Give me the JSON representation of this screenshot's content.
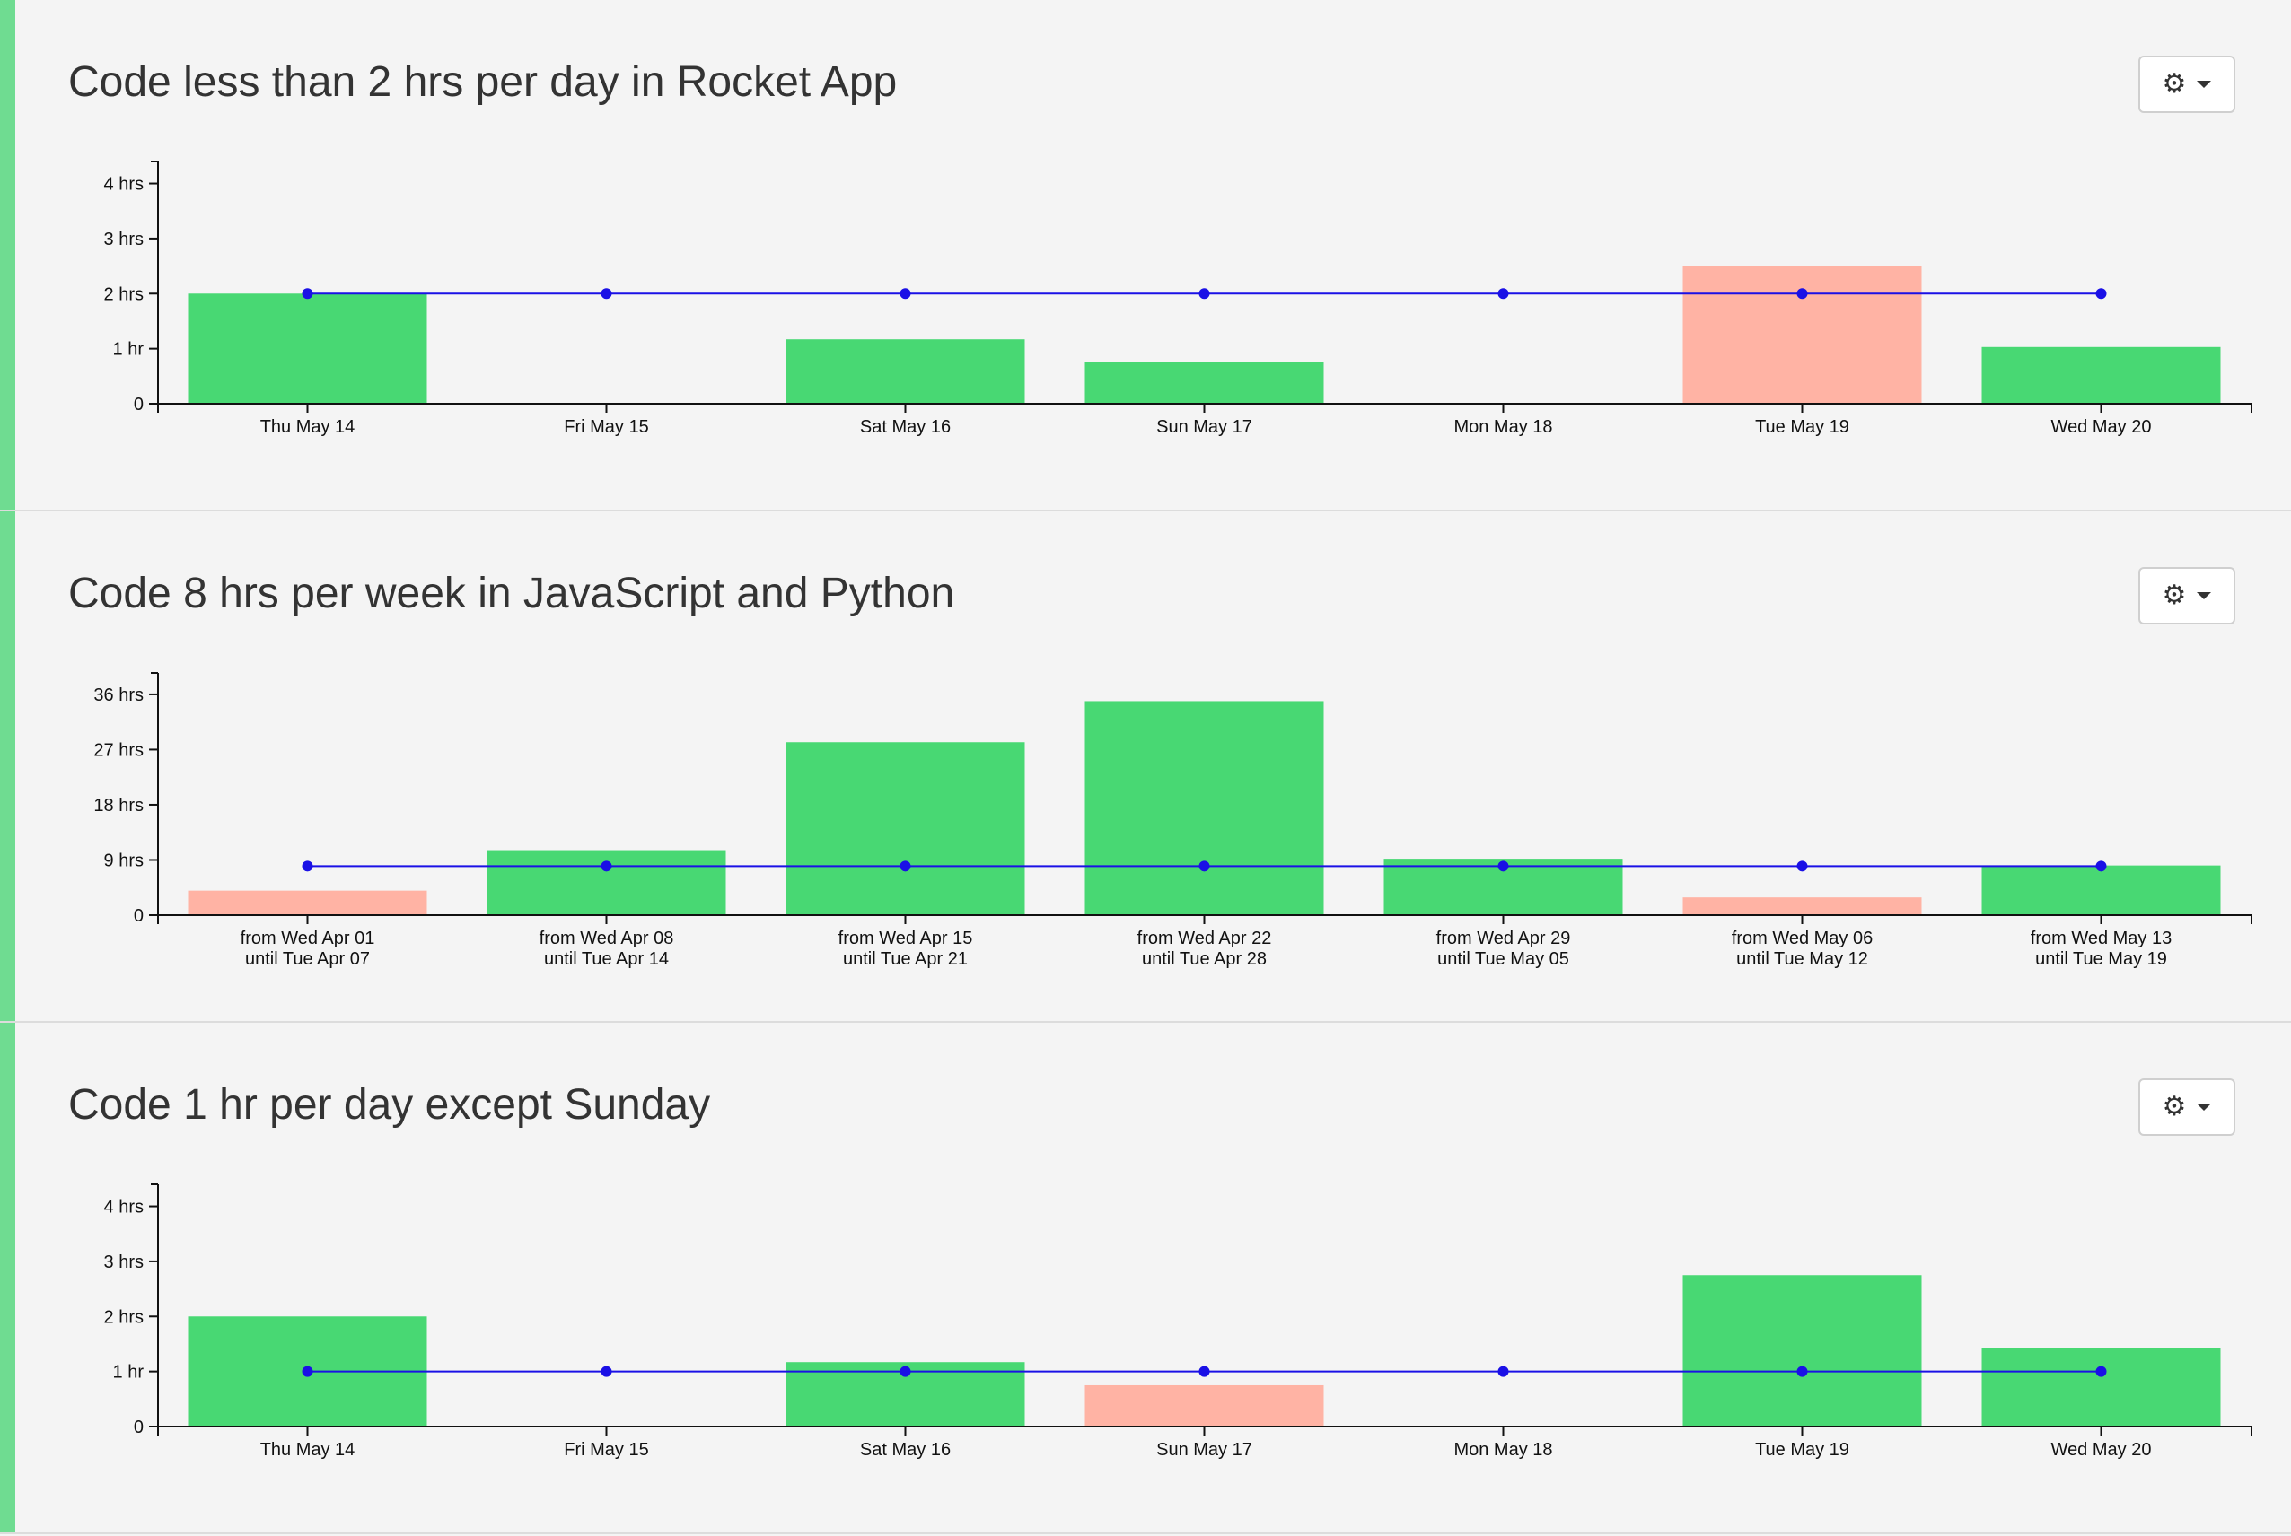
{
  "colors": {
    "met": "#48d873",
    "missed": "#ffb3a4",
    "goal_line": "#1a10e6",
    "accent": "#6fdc91"
  },
  "panels": [
    {
      "title": "Code less than 2 hrs per day in Rocket App",
      "settings_icon": "gear-icon",
      "chart_data": {
        "type": "bar",
        "categories": [
          [
            "Thu May 14"
          ],
          [
            "Fri May 15"
          ],
          [
            "Sat May 16"
          ],
          [
            "Sun May 17"
          ],
          [
            "Mon May 18"
          ],
          [
            "Tue May 19"
          ],
          [
            "Wed May 20"
          ]
        ],
        "values": [
          2.0,
          0,
          1.17,
          0.75,
          0,
          2.5,
          1.03
        ],
        "status": [
          "met",
          "met",
          "met",
          "met",
          "met",
          "missed",
          "met"
        ],
        "goal": 2,
        "ylim": [
          0,
          4.4
        ],
        "yticks": [
          0,
          1,
          2,
          3,
          4
        ],
        "ytick_labels": [
          "0",
          "1 hr",
          "2 hrs",
          "3 hrs",
          "4 hrs"
        ]
      }
    },
    {
      "title": "Code 8 hrs per week in JavaScript and Python",
      "settings_icon": "gear-icon",
      "chart_data": {
        "type": "bar",
        "categories": [
          [
            "from Wed Apr 01",
            "until Tue Apr 07"
          ],
          [
            "from Wed Apr 08",
            "until Tue Apr 14"
          ],
          [
            "from Wed Apr 15",
            "until Tue Apr 21"
          ],
          [
            "from Wed Apr 22",
            "until Tue Apr 28"
          ],
          [
            "from Wed Apr 29",
            "until Tue May 05"
          ],
          [
            "from Wed May 06",
            "until Tue May 12"
          ],
          [
            "from Wed May 13",
            "until Tue May 19"
          ]
        ],
        "values": [
          4.0,
          10.6,
          28.2,
          34.9,
          9.2,
          2.9,
          8.1
        ],
        "status": [
          "missed",
          "met",
          "met",
          "met",
          "met",
          "missed",
          "met"
        ],
        "goal": 8,
        "ylim": [
          0,
          39.5
        ],
        "yticks": [
          0,
          9,
          18,
          27,
          36
        ],
        "ytick_labels": [
          "0",
          "9 hrs",
          "18 hrs",
          "27 hrs",
          "36 hrs"
        ]
      }
    },
    {
      "title": "Code 1 hr per day except Sunday",
      "settings_icon": "gear-icon",
      "chart_data": {
        "type": "bar",
        "categories": [
          [
            "Thu May 14"
          ],
          [
            "Fri May 15"
          ],
          [
            "Sat May 16"
          ],
          [
            "Sun May 17"
          ],
          [
            "Mon May 18"
          ],
          [
            "Tue May 19"
          ],
          [
            "Wed May 20"
          ]
        ],
        "values": [
          2.0,
          0,
          1.17,
          0.75,
          0,
          2.75,
          1.43
        ],
        "status": [
          "met",
          "met",
          "met",
          "missed",
          "met",
          "met",
          "met"
        ],
        "goal": 1,
        "ylim": [
          0,
          4.4
        ],
        "yticks": [
          0,
          1,
          2,
          3,
          4
        ],
        "ytick_labels": [
          "0",
          "1 hr",
          "2 hrs",
          "3 hrs",
          "4 hrs"
        ]
      }
    }
  ]
}
